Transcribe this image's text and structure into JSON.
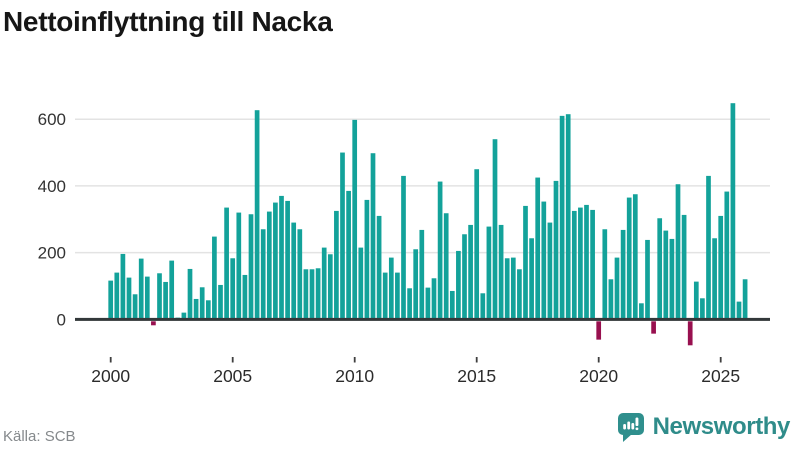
{
  "title": "Nettoinflyttning till Nacka",
  "source": "Källa: SCB",
  "brand": {
    "name": "Newsworthy"
  },
  "colors": {
    "bar_positive": "#13a29a",
    "bar_negative": "#98104f",
    "grid": "#e3e3e3",
    "axis": "#33383a",
    "tick": "#3f3f3f",
    "y_label": "#333333",
    "x_label": "#2b2b2b",
    "title": "#161616",
    "source_text": "#85898c",
    "brand_teal": "#2f8c8a"
  },
  "chart_data": {
    "type": "bar",
    "title": "Nettoinflyttning till Nacka",
    "xlabel": "",
    "ylabel": "",
    "frequency": "quarterly",
    "x_start": "2000-Q1",
    "x_end": "2026-Q1",
    "values": [
      116,
      140,
      196,
      125,
      75,
      182,
      128,
      -12,
      138,
      112,
      176,
      5,
      20,
      151,
      61,
      96,
      57,
      248,
      103,
      335,
      183,
      320,
      133,
      315,
      627,
      270,
      323,
      350,
      370,
      355,
      290,
      270,
      150,
      150,
      153,
      215,
      195,
      325,
      500,
      385,
      598,
      215,
      358,
      498,
      310,
      140,
      185,
      140,
      430,
      93,
      210,
      268,
      95,
      123,
      413,
      318,
      85,
      205,
      255,
      283,
      450,
      78,
      278,
      540,
      283,
      183,
      185,
      150,
      340,
      243,
      425,
      353,
      290,
      415,
      610,
      615,
      325,
      335,
      343,
      328,
      -55,
      270,
      120,
      185,
      268,
      365,
      375,
      48,
      238,
      -37,
      303,
      266,
      241,
      405,
      313,
      -72,
      113,
      63,
      430,
      243,
      310,
      383,
      648,
      53,
      120
    ],
    "xticks": [
      "2000",
      "2005",
      "2010",
      "2015",
      "2020",
      "2025"
    ],
    "yticks": [
      0,
      200,
      400,
      600
    ],
    "ylim": [
      -110,
      680
    ],
    "grid": "horizontal",
    "legend": "none"
  }
}
